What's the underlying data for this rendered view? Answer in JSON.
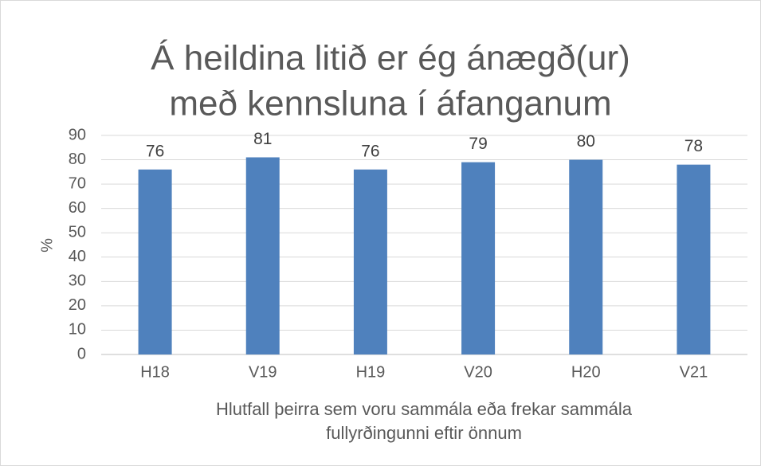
{
  "chart_data": {
    "type": "bar",
    "title": [
      "Á heildina litið er ég ánægð(ur)",
      "með kennsluna í áfanganum"
    ],
    "ylabel": "%",
    "xlabel": [
      "Hlutfall þeirra sem voru sammála eða frekar sammála",
      "fullyrðingunni eftir önnum"
    ],
    "categories": [
      "H18",
      "V19",
      "H19",
      "V20",
      "H20",
      "V21"
    ],
    "values": [
      76,
      81,
      76,
      79,
      80,
      78
    ],
    "color": "#4f81bd",
    "ylim": [
      0,
      90
    ],
    "yticks": [
      0,
      10,
      20,
      30,
      40,
      50,
      60,
      70,
      80,
      90
    ],
    "grid": true
  }
}
